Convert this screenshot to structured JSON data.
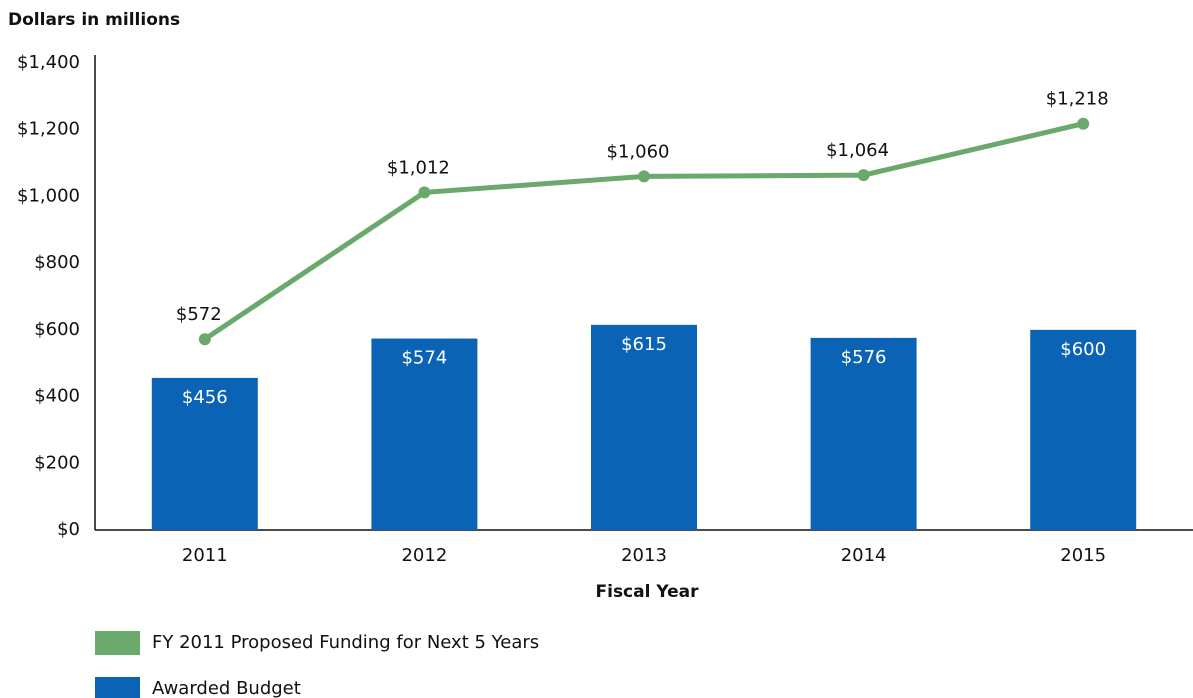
{
  "chart_data": {
    "type": "bar",
    "y_axis_label": "Dollars in millions",
    "x_axis_label": "Fiscal Year",
    "categories": [
      "2011",
      "2012",
      "2013",
      "2014",
      "2015"
    ],
    "series": [
      {
        "name": "FY 2011 Proposed Funding for Next 5 Years",
        "type": "line",
        "color": "#6aa86c",
        "values": [
          572,
          1012,
          1060,
          1064,
          1218
        ],
        "value_labels": [
          "$572",
          "$1,012",
          "$1,060",
          "$1,064",
          "$1,218"
        ]
      },
      {
        "name": "Awarded Budget",
        "type": "bar",
        "color": "#0b63b6",
        "values": [
          456,
          574,
          615,
          576,
          600
        ],
        "value_labels": [
          "$456",
          "$574",
          "$615",
          "$576",
          "$600"
        ]
      }
    ],
    "ylim": [
      0,
      1400
    ],
    "yticks": [
      {
        "value": 0,
        "label": "$0"
      },
      {
        "value": 200,
        "label": "$200"
      },
      {
        "value": 400,
        "label": "$400"
      },
      {
        "value": 600,
        "label": "$600"
      },
      {
        "value": 800,
        "label": "$800"
      },
      {
        "value": 1000,
        "label": "$1,000"
      },
      {
        "value": 1200,
        "label": "$1,200"
      },
      {
        "value": 1400,
        "label": "$1,400"
      }
    ],
    "grid": false
  }
}
